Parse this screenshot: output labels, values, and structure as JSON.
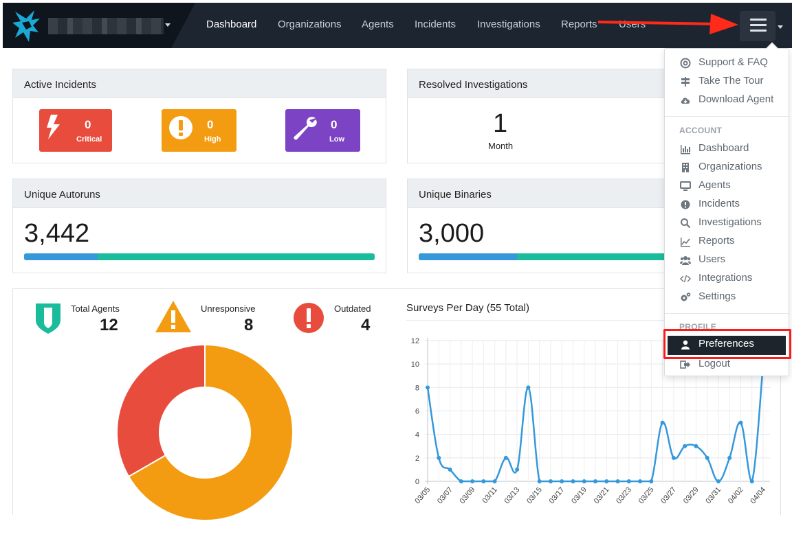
{
  "nav": {
    "links": [
      {
        "label": "Dashboard",
        "active": true
      },
      {
        "label": "Organizations",
        "active": false
      },
      {
        "label": "Agents",
        "active": false
      },
      {
        "label": "Incidents",
        "active": false
      },
      {
        "label": "Investigations",
        "active": false
      },
      {
        "label": "Reports",
        "active": false
      },
      {
        "label": "Users",
        "active": false
      }
    ],
    "menu_icon": "hamburger-icon",
    "accent": "#1c2530"
  },
  "active_incidents": {
    "title": "Active Incidents",
    "critical": {
      "value": "0",
      "label": "Critical",
      "color": "#e74c3c",
      "icon": "lightning-icon"
    },
    "high": {
      "value": "0",
      "label": "High",
      "color": "#f39c12",
      "icon": "exclamation-icon"
    },
    "low": {
      "value": "0",
      "label": "Low",
      "color": "#7c44c4",
      "icon": "wrench-icon"
    }
  },
  "resolved_investigations": {
    "title": "Resolved Investigations",
    "value": "1",
    "period": "Month"
  },
  "unique_autoruns": {
    "title": "Unique Autoruns",
    "value": "3,442",
    "bar_fraction": 0.21
  },
  "unique_binaries": {
    "title": "Unique Binaries",
    "value": "3,000",
    "bar_fraction": 0.28
  },
  "agents_summary": {
    "total": {
      "label": "Total Agents",
      "value": "12",
      "color": "#1abc9c"
    },
    "unresponsive": {
      "label": "Unresponsive",
      "value": "8",
      "color": "#f39c12"
    },
    "outdated": {
      "label": "Outdated",
      "value": "4",
      "color": "#e74c3c"
    }
  },
  "dropdown": {
    "top_items": [
      {
        "label": "Support & FAQ",
        "icon": "lifebuoy-icon"
      },
      {
        "label": "Take The Tour",
        "icon": "signpost-icon"
      },
      {
        "label": "Download Agent",
        "icon": "cloud-download-icon"
      }
    ],
    "account_header": "ACCOUNT",
    "account_items": [
      {
        "label": "Dashboard",
        "icon": "bar-chart-icon"
      },
      {
        "label": "Organizations",
        "icon": "building-icon"
      },
      {
        "label": "Agents",
        "icon": "monitor-icon"
      },
      {
        "label": "Incidents",
        "icon": "alert-circle-icon"
      },
      {
        "label": "Investigations",
        "icon": "search-icon"
      },
      {
        "label": "Reports",
        "icon": "line-chart-icon"
      },
      {
        "label": "Users",
        "icon": "users-icon"
      },
      {
        "label": "Integrations",
        "icon": "code-icon"
      },
      {
        "label": "Settings",
        "icon": "gears-icon"
      }
    ],
    "profile_header": "PROFILE",
    "profile_items": [
      {
        "label": "Preferences",
        "icon": "user-icon"
      },
      {
        "label": "Logout",
        "icon": "sign-out-icon"
      }
    ]
  },
  "chart_data": [
    {
      "type": "pie",
      "categories": [
        "Unresponsive",
        "Outdated"
      ],
      "values": [
        8,
        4
      ],
      "colors": [
        "#f39c12",
        "#e74c3c"
      ],
      "donut": true
    },
    {
      "type": "line",
      "title": "Surveys Per Day (55 Total)",
      "x": [
        "03/05",
        "03/06",
        "03/07",
        "03/08",
        "03/09",
        "03/10",
        "03/11",
        "03/12",
        "03/13",
        "03/14",
        "03/15",
        "03/16",
        "03/17",
        "03/18",
        "03/19",
        "03/20",
        "03/21",
        "03/22",
        "03/23",
        "03/24",
        "03/25",
        "03/26",
        "03/27",
        "03/28",
        "03/29",
        "03/30",
        "03/31",
        "04/01",
        "04/02",
        "04/03",
        "04/04"
      ],
      "tick_labels": [
        "03/05",
        "03/07",
        "03/09",
        "03/11",
        "03/13",
        "03/15",
        "03/17",
        "03/19",
        "03/21",
        "03/23",
        "03/25",
        "03/27",
        "03/29",
        "03/31",
        "04/02",
        "04/04"
      ],
      "series": [
        {
          "values": [
            8,
            2,
            1,
            0,
            0,
            0,
            0,
            2,
            1,
            8,
            0,
            0,
            0,
            0,
            0,
            0,
            0,
            0,
            0,
            0,
            0,
            5,
            2,
            3,
            3,
            2,
            0,
            2,
            5,
            0,
            10
          ],
          "color": "#3498db"
        }
      ],
      "ylim": [
        0,
        12
      ],
      "yticks": [
        0,
        2,
        4,
        6,
        8,
        10,
        12
      ],
      "grid": true
    }
  ]
}
